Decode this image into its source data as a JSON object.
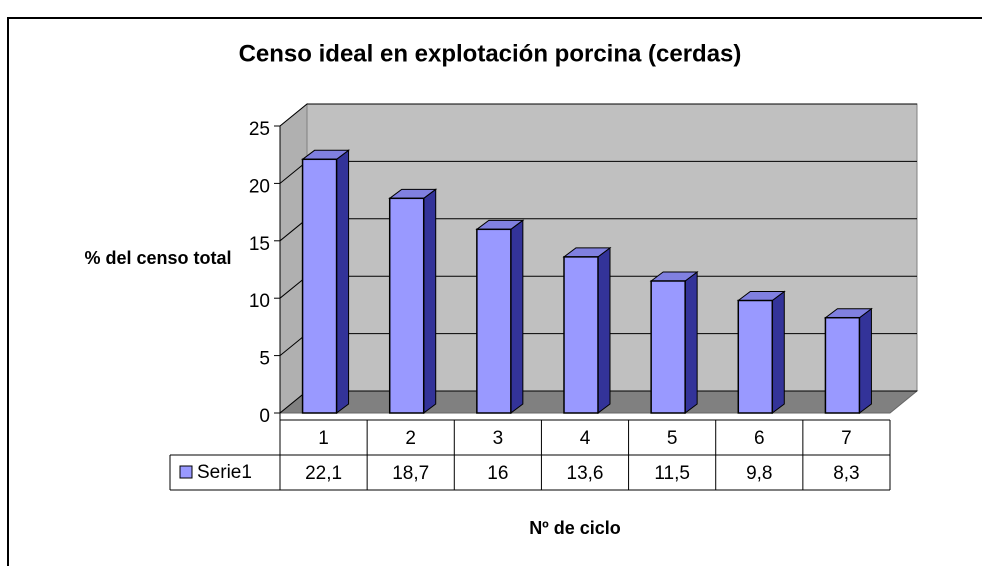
{
  "chart_data": {
    "type": "bar3d",
    "title": "Censo ideal en explotación porcina (cerdas)",
    "y_label": "% del censo total",
    "x_label": "Nº de ciclo",
    "categories": [
      "1",
      "2",
      "3",
      "4",
      "5",
      "6",
      "7"
    ],
    "series": [
      {
        "name": "Serie1",
        "color": "#9999ff",
        "values": [
          22.1,
          18.7,
          16,
          13.6,
          11.5,
          9.8,
          8.3
        ],
        "value_labels": [
          "22,1",
          "18,7",
          "16",
          "13,6",
          "11,5",
          "9,8",
          "8,3"
        ]
      }
    ],
    "ylim": [
      0,
      25
    ],
    "yticks": [
      0,
      5,
      10,
      15,
      20,
      25
    ],
    "grid": true
  }
}
